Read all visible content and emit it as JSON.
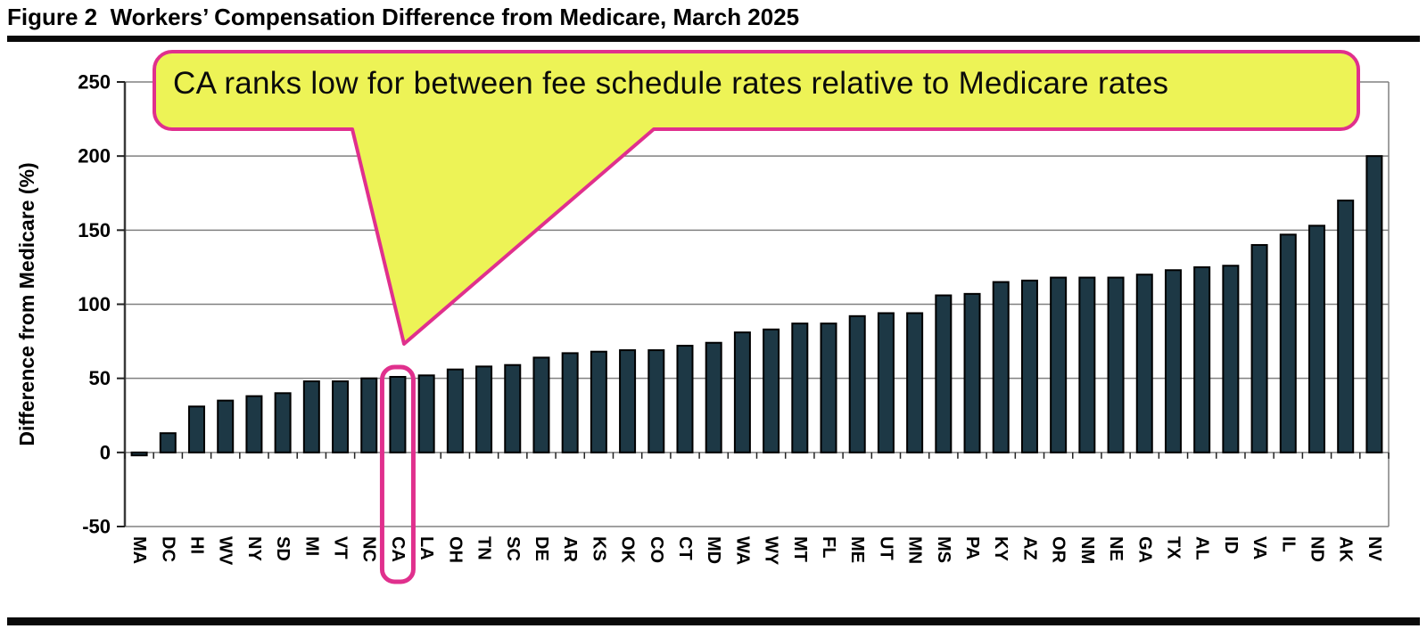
{
  "figure": {
    "title": "Figure 2  Workers’ Compensation Difference from Medicare, March 2025"
  },
  "annotation": {
    "text": "CA ranks low for between fee schedule rates relative to Medicare rates"
  },
  "chart_data": {
    "type": "bar",
    "title": "Workers’ Compensation Difference from Medicare, March 2025",
    "xlabel": "",
    "ylabel": "Difference from Medicare (%)",
    "ylim": [
      -50,
      250
    ],
    "yticks": [
      250,
      200,
      150,
      100,
      50,
      0,
      -50
    ],
    "grid": true,
    "legend": false,
    "highlighted_category": "CA",
    "annotation": "CA ranks low for between fee schedule rates relative to Medicare rates",
    "categories": [
      "MA",
      "DC",
      "HI",
      "WV",
      "NY",
      "SD",
      "MI",
      "VT",
      "NC",
      "CA",
      "LA",
      "OH",
      "TN",
      "SC",
      "DE",
      "AR",
      "KS",
      "OK",
      "CO",
      "CT",
      "MD",
      "WA",
      "WY",
      "MT",
      "FL",
      "ME",
      "UT",
      "MN",
      "MS",
      "PA",
      "KY",
      "AZ",
      "OR",
      "NM",
      "NE",
      "GA",
      "TX",
      "AL",
      "ID",
      "VA",
      "IL",
      "ND",
      "AK",
      "NV"
    ],
    "values": [
      -2,
      13,
      31,
      35,
      38,
      40,
      48,
      48,
      50,
      51,
      52,
      56,
      58,
      59,
      64,
      67,
      68,
      69,
      69,
      72,
      74,
      81,
      83,
      87,
      87,
      92,
      94,
      94,
      106,
      107,
      115,
      116,
      118,
      118,
      118,
      120,
      123,
      125,
      126,
      140,
      147,
      153,
      170,
      200
    ]
  },
  "colors": {
    "bar": "#1d3845",
    "bar_outline": "#000000",
    "gridline": "#808080",
    "axis": "#3a3a3a",
    "tick": "#222222",
    "text": "#000000",
    "highlight_box": "#e0308d",
    "callout_fill": "#edf356",
    "callout_border": "#e0308d"
  }
}
